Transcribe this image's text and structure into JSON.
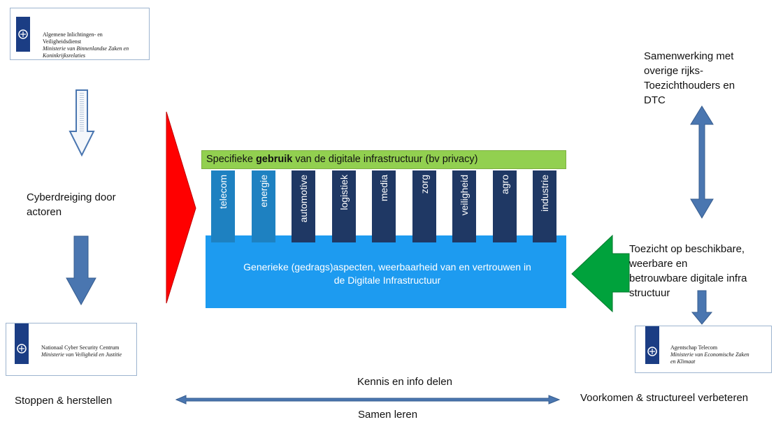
{
  "logos": {
    "aivd": {
      "line1": "Algemene Inlichtingen- en",
      "line2": "Veiligheidsdienst",
      "sub1": "Ministerie van Binnenlandse Zaken en",
      "sub2": "Koninkrijksrelaties"
    },
    "ncsc": {
      "line1": "Nationaal Cyber Security Centrum",
      "sub1": "Ministerie van Veiligheid en Justitie"
    },
    "at": {
      "line1": "Agentschap Telecom",
      "sub1": "Ministerie van Economische Zaken",
      "sub2": "en Klimaat"
    }
  },
  "left": {
    "threat": {
      "line1": "Cyberdreiging door",
      "line2": "actoren"
    },
    "stop": "Stoppen & herstellen"
  },
  "right": {
    "coop": {
      "line1": "Samenwerking met",
      "line2": "overige rijks-",
      "line3": "Toezichthouders en",
      "line4": "DTC"
    },
    "supervision": {
      "line1": "Toezicht op beschikbare,",
      "line2": "weerbare en",
      "line3": "betrouwbare digitale infra",
      "line4": "structuur"
    },
    "prevent": "Voorkomen & structureel verbeteren"
  },
  "center": {
    "top_bar": {
      "pre": "Specifieke ",
      "bold": "gebruik",
      "post": " van de digitale infrastructuur (bv privacy)"
    },
    "pillars": [
      "telecom",
      "energie",
      "automotive",
      "logistiek",
      "media",
      "zorg",
      "veiligheid",
      "agro",
      "industrie"
    ],
    "base": {
      "line1": "Generieke (gedrags)aspecten, weerbaarheid van en vertrouwen in",
      "line2": "de Digitale Infrastructuur"
    }
  },
  "bottom": {
    "top": "Kennis en info delen",
    "bottom": "Samen leren"
  },
  "colors": {
    "pillar_light": "#1e81c1",
    "pillar_dark": "#1f3864",
    "green_bar": "#92d050",
    "base_blue": "#1d9bf0",
    "red_arrow": "#ff0000",
    "green_arrow": "#00a23c",
    "steel_arrow": "#4a76b0"
  }
}
